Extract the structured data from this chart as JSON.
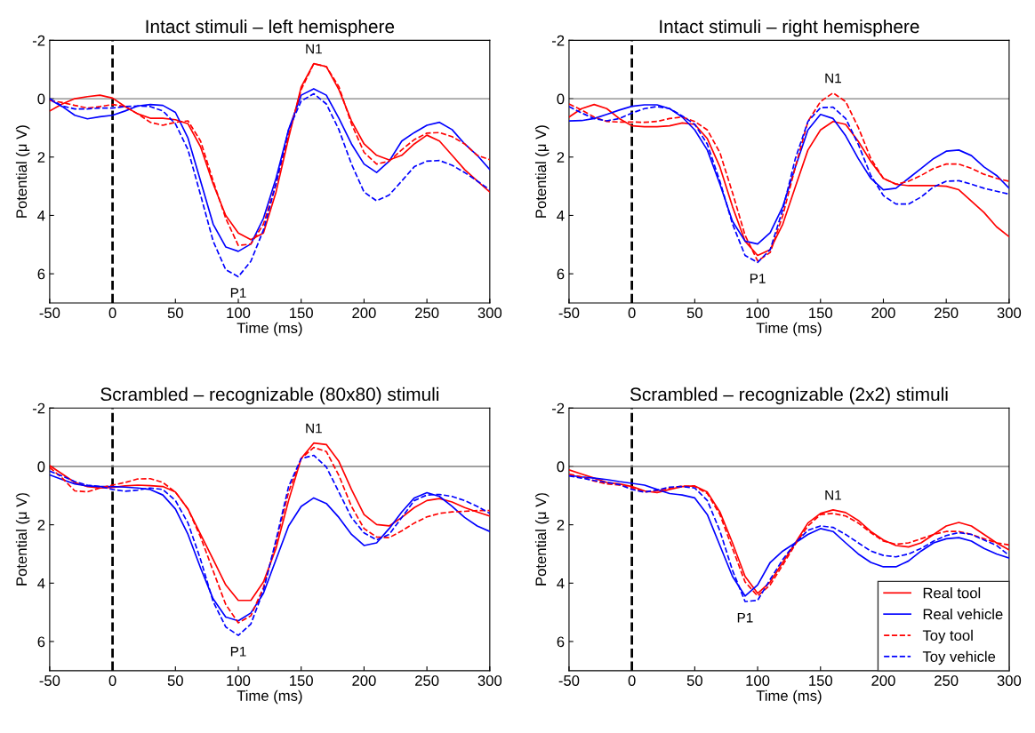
{
  "chart_data": [
    {
      "type": "line",
      "title": "Intact stimuli – left hemisphere",
      "xlabel": "Time (ms)",
      "ylabel": "Potential (μ V)",
      "x": [
        -50,
        -40,
        -30,
        -20,
        -10,
        0,
        10,
        20,
        30,
        40,
        50,
        60,
        70,
        80,
        90,
        100,
        110,
        120,
        130,
        140,
        150,
        160,
        170,
        180,
        190,
        200,
        210,
        220,
        230,
        240,
        250,
        260,
        270,
        280,
        290,
        300
      ],
      "xlim": [
        -50,
        300
      ],
      "xticks": [
        -50,
        0,
        50,
        100,
        150,
        200,
        250,
        300
      ],
      "ylim": [
        7,
        -2
      ],
      "yticks": [
        -2,
        0,
        2,
        4,
        6
      ],
      "grid": false,
      "legend": false,
      "series": [
        {
          "color": "#ff0000",
          "line_style": "solid",
          "values": [
            0.42,
            0.18,
            0,
            -0.07,
            -0.12,
            -0.02,
            0.27,
            0.52,
            0.67,
            0.67,
            0.72,
            0.86,
            1.65,
            2.92,
            4.0,
            4.6,
            4.83,
            4.6,
            3.2,
            1.35,
            -0.4,
            -1.2,
            -1.1,
            -0.31,
            0.76,
            1.55,
            1.94,
            2.1,
            1.94,
            1.55,
            1.25,
            1.45,
            1.94,
            2.43,
            2.82,
            3.2
          ]
        },
        {
          "color": "#0000ff",
          "line_style": "solid",
          "values": [
            0.03,
            0.27,
            0.57,
            0.69,
            0.62,
            0.57,
            0.42,
            0.25,
            0.2,
            0.23,
            0.47,
            1.35,
            2.82,
            4.3,
            5.08,
            5.23,
            4.98,
            4.1,
            2.73,
            1.06,
            -0.12,
            -0.34,
            -0.12,
            0.67,
            1.55,
            2.24,
            2.53,
            2.14,
            1.45,
            1.16,
            0.91,
            0.81,
            1.06,
            1.55,
            1.94,
            2.43
          ]
        },
        {
          "color": "#ff0000",
          "line_style": "dashed",
          "values": [
            0.06,
            0.13,
            0.23,
            0.32,
            0.27,
            0.2,
            0.27,
            0.52,
            0.81,
            0.91,
            0.81,
            0.76,
            1.45,
            2.82,
            4.1,
            5.03,
            4.98,
            4.3,
            2.92,
            1.25,
            -0.31,
            -1.2,
            -1.1,
            -0.41,
            0.86,
            1.84,
            2.24,
            2.14,
            1.75,
            1.4,
            1.18,
            1.16,
            1.3,
            1.55,
            1.94,
            2.09
          ]
        },
        {
          "color": "#0000ff",
          "line_style": "dashed",
          "values": [
            0,
            0.25,
            0.35,
            0.35,
            0.32,
            0.32,
            0.27,
            0.25,
            0.27,
            0.42,
            0.86,
            1.75,
            3.3,
            4.88,
            5.86,
            6.1,
            5.57,
            4.5,
            2.92,
            1.06,
            0.08,
            -0.17,
            0.18,
            1.06,
            2.24,
            3.2,
            3.5,
            3.3,
            2.82,
            2.33,
            2.14,
            2.12,
            2.28,
            2.53,
            2.82,
            3.12
          ]
        }
      ],
      "ref_lines": [
        {
          "axis": "x",
          "value": 0,
          "color": "#000000",
          "line_style": "dashed"
        },
        {
          "axis": "y",
          "value": 0,
          "color": "#808080",
          "line_style": "solid"
        }
      ],
      "annotations": [
        "N1",
        "P1"
      ]
    },
    {
      "type": "line",
      "title": "Intact stimuli – right hemisphere",
      "xlabel": "Time (ms)",
      "ylabel": "Potential (μ V)",
      "x": [
        -50,
        -40,
        -30,
        -20,
        -10,
        0,
        10,
        20,
        30,
        40,
        50,
        60,
        70,
        80,
        90,
        100,
        110,
        120,
        130,
        140,
        150,
        160,
        170,
        180,
        190,
        200,
        210,
        220,
        230,
        240,
        250,
        260,
        270,
        280,
        290,
        300
      ],
      "xlim": [
        -50,
        300
      ],
      "xticks": [
        -50,
        0,
        50,
        100,
        150,
        200,
        250,
        300
      ],
      "ylim": [
        7,
        -2
      ],
      "yticks": [
        -2,
        0,
        2,
        4,
        6
      ],
      "grid": false,
      "legend": false,
      "series": [
        {
          "color": "#ff0000",
          "line_style": "solid",
          "values": [
            0.63,
            0.34,
            0.2,
            0.34,
            0.68,
            0.93,
            0.96,
            0.96,
            0.93,
            0.83,
            0.88,
            1.37,
            2.34,
            3.7,
            4.88,
            5.37,
            5.17,
            4.3,
            3.02,
            1.76,
            1.07,
            0.78,
            0.88,
            1.46,
            2.15,
            2.73,
            2.93,
            2.98,
            2.98,
            2.98,
            3.0,
            3.12,
            3.51,
            3.9,
            4.39,
            4.73
          ]
        },
        {
          "color": "#0000ff",
          "line_style": "solid",
          "values": [
            0.76,
            0.75,
            0.68,
            0.54,
            0.39,
            0.26,
            0.21,
            0.21,
            0.34,
            0.63,
            1.07,
            1.76,
            2.93,
            4.2,
            4.88,
            4.98,
            4.59,
            3.7,
            2.34,
            1.07,
            0.54,
            0.68,
            1.27,
            2.05,
            2.73,
            3.12,
            3.07,
            2.73,
            2.39,
            2.05,
            1.8,
            1.76,
            1.95,
            2.34,
            2.63,
            3.07
          ]
        },
        {
          "color": "#ff0000",
          "line_style": "dashed",
          "values": [
            0.18,
            0.39,
            0.63,
            0.78,
            0.8,
            0.8,
            0.81,
            0.78,
            0.68,
            0.63,
            0.78,
            1.07,
            1.85,
            3.22,
            4.68,
            5.56,
            5.27,
            4.0,
            2.34,
            0.78,
            0.1,
            -0.2,
            0.1,
            0.98,
            2.05,
            2.73,
            2.93,
            2.83,
            2.63,
            2.39,
            2.24,
            2.24,
            2.39,
            2.59,
            2.73,
            2.83
          ]
        },
        {
          "color": "#0000ff",
          "line_style": "dashed",
          "values": [
            0.27,
            0.49,
            0.68,
            0.76,
            0.68,
            0.49,
            0.34,
            0.27,
            0.34,
            0.59,
            0.88,
            1.56,
            2.83,
            4.29,
            5.37,
            5.61,
            5.17,
            3.8,
            2.05,
            0.78,
            0.31,
            0.29,
            0.68,
            1.56,
            2.63,
            3.32,
            3.61,
            3.61,
            3.37,
            3.02,
            2.83,
            2.81,
            2.93,
            3.07,
            3.17,
            3.27
          ]
        }
      ],
      "ref_lines": [
        {
          "axis": "x",
          "value": 0,
          "color": "#000000",
          "line_style": "dashed"
        },
        {
          "axis": "y",
          "value": 0,
          "color": "#808080",
          "line_style": "solid"
        }
      ],
      "annotations": [
        "N1",
        "P1"
      ]
    },
    {
      "type": "line",
      "title": "Scrambled – recognizable (80x80) stimuli",
      "xlabel": "Time (ms)",
      "ylabel": "Potential (μ V)",
      "x": [
        -50,
        -40,
        -30,
        -20,
        -10,
        0,
        10,
        20,
        30,
        40,
        50,
        60,
        70,
        80,
        90,
        100,
        110,
        120,
        130,
        140,
        150,
        160,
        170,
        180,
        190,
        200,
        210,
        220,
        230,
        240,
        250,
        260,
        270,
        280,
        290,
        300
      ],
      "xlim": [
        -50,
        300
      ],
      "xticks": [
        -50,
        0,
        50,
        100,
        150,
        200,
        250,
        300
      ],
      "ylim": [
        7,
        -2
      ],
      "yticks": [
        -2,
        0,
        2,
        4,
        6
      ],
      "grid": false,
      "legend": false,
      "series": [
        {
          "color": "#ff0000",
          "line_style": "solid",
          "values": [
            -0.03,
            0.26,
            0.55,
            0.69,
            0.74,
            0.72,
            0.67,
            0.64,
            0.66,
            0.69,
            0.88,
            1.46,
            2.33,
            3.19,
            4.06,
            4.59,
            4.59,
            3.96,
            2.81,
            1.17,
            -0.27,
            -0.8,
            -0.75,
            -0.17,
            0.79,
            1.65,
            1.99,
            2.04,
            1.75,
            1.41,
            1.17,
            1.1,
            1.22,
            1.41,
            1.56,
            1.7
          ]
        },
        {
          "color": "#0000ff",
          "line_style": "solid",
          "values": [
            0.29,
            0.45,
            0.6,
            0.67,
            0.69,
            0.69,
            0.71,
            0.74,
            0.79,
            0.98,
            1.46,
            2.33,
            3.48,
            4.54,
            5.16,
            5.29,
            5.02,
            4.35,
            3.19,
            2.04,
            1.37,
            1.08,
            1.27,
            1.75,
            2.33,
            2.71,
            2.62,
            2.13,
            1.56,
            1.08,
            0.9,
            1.03,
            1.37,
            1.75,
            2.04,
            2.23
          ]
        },
        {
          "color": "#ff0000",
          "line_style": "dashed",
          "values": [
            0.04,
            0.4,
            0.84,
            0.87,
            0.74,
            0.64,
            0.55,
            0.43,
            0.42,
            0.55,
            0.88,
            1.46,
            2.42,
            3.58,
            4.73,
            5.36,
            5.12,
            4.15,
            2.62,
            0.88,
            -0.27,
            -0.65,
            -0.51,
            0.31,
            1.37,
            2.13,
            2.42,
            2.44,
            2.21,
            1.94,
            1.73,
            1.61,
            1.56,
            1.54,
            1.51,
            1.51
          ]
        },
        {
          "color": "#0000ff",
          "line_style": "dashed",
          "values": [
            0.16,
            0.33,
            0.52,
            0.64,
            0.69,
            0.79,
            0.85,
            0.81,
            0.74,
            0.79,
            1.17,
            1.94,
            3.19,
            4.63,
            5.5,
            5.79,
            5.4,
            4.25,
            2.52,
            0.69,
            -0.27,
            -0.38,
            0.02,
            0.88,
            1.75,
            2.28,
            2.52,
            2.33,
            1.75,
            1.17,
            0.98,
            0.96,
            1.03,
            1.17,
            1.37,
            1.61
          ]
        }
      ],
      "ref_lines": [
        {
          "axis": "x",
          "value": 0,
          "color": "#000000",
          "line_style": "dashed"
        },
        {
          "axis": "y",
          "value": 0,
          "color": "#808080",
          "line_style": "solid"
        }
      ],
      "annotations": [
        "N1",
        "P1"
      ]
    },
    {
      "type": "line",
      "title": "Scrambled – recognizable (2x2) stimuli",
      "xlabel": "Time (ms)",
      "ylabel": "Potential (μ V)",
      "x": [
        -50,
        -40,
        -30,
        -20,
        -10,
        0,
        10,
        20,
        30,
        40,
        50,
        60,
        70,
        80,
        90,
        100,
        110,
        120,
        130,
        140,
        150,
        160,
        170,
        180,
        190,
        200,
        210,
        220,
        230,
        240,
        250,
        260,
        270,
        280,
        290,
        300
      ],
      "xlim": [
        -50,
        300
      ],
      "xticks": [
        -50,
        0,
        50,
        100,
        150,
        200,
        250,
        300
      ],
      "ylim": [
        7,
        -2
      ],
      "yticks": [
        -2,
        0,
        2,
        4,
        6
      ],
      "grid": false,
      "legend": "bottom right",
      "series": [
        {
          "name": "Real tool",
          "color": "#ff0000",
          "line_style": "solid",
          "values": [
            0.12,
            0.26,
            0.4,
            0.55,
            0.6,
            0.69,
            0.84,
            0.9,
            0.79,
            0.69,
            0.67,
            0.88,
            1.56,
            2.62,
            3.77,
            4.35,
            3.96,
            3.29,
            2.62,
            1.94,
            1.61,
            1.49,
            1.58,
            1.85,
            2.23,
            2.52,
            2.71,
            2.76,
            2.62,
            2.33,
            2.04,
            1.92,
            2.04,
            2.33,
            2.62,
            2.86
          ]
        },
        {
          "name": "Real vehicle",
          "color": "#0000ff",
          "line_style": "solid",
          "values": [
            0.31,
            0.36,
            0.4,
            0.45,
            0.52,
            0.58,
            0.64,
            0.79,
            0.93,
            0.98,
            1.08,
            1.65,
            2.71,
            3.77,
            4.44,
            4.06,
            3.29,
            2.9,
            2.62,
            2.33,
            2.13,
            2.23,
            2.62,
            3.0,
            3.29,
            3.44,
            3.44,
            3.24,
            2.9,
            2.62,
            2.48,
            2.44,
            2.56,
            2.81,
            3.0,
            3.14
          ]
        },
        {
          "name": "Toy tool",
          "color": "#ff0000",
          "line_style": "dashed",
          "values": [
            0.26,
            0.36,
            0.5,
            0.6,
            0.64,
            0.74,
            0.88,
            0.84,
            0.74,
            0.67,
            0.69,
            0.93,
            1.65,
            2.81,
            3.96,
            4.44,
            4.06,
            3.38,
            2.67,
            2.04,
            1.65,
            1.61,
            1.7,
            1.94,
            2.27,
            2.56,
            2.67,
            2.62,
            2.48,
            2.33,
            2.23,
            2.23,
            2.33,
            2.48,
            2.62,
            2.69
          ]
        },
        {
          "name": "Toy vehicle",
          "color": "#0000ff",
          "line_style": "dashed",
          "values": [
            0.33,
            0.4,
            0.48,
            0.55,
            0.62,
            0.79,
            0.88,
            0.81,
            0.71,
            0.69,
            0.74,
            1.17,
            2.21,
            3.56,
            4.63,
            4.59,
            3.87,
            3.19,
            2.62,
            2.19,
            2.04,
            2.09,
            2.33,
            2.62,
            2.9,
            3.05,
            3.1,
            3.0,
            2.81,
            2.56,
            2.37,
            2.27,
            2.33,
            2.52,
            2.71,
            3.05
          ]
        }
      ],
      "ref_lines": [
        {
          "axis": "x",
          "value": 0,
          "color": "#000000",
          "line_style": "dashed"
        },
        {
          "axis": "y",
          "value": 0,
          "color": "#808080",
          "line_style": "solid"
        }
      ],
      "annotations": [
        "N1",
        "P1"
      ]
    }
  ]
}
